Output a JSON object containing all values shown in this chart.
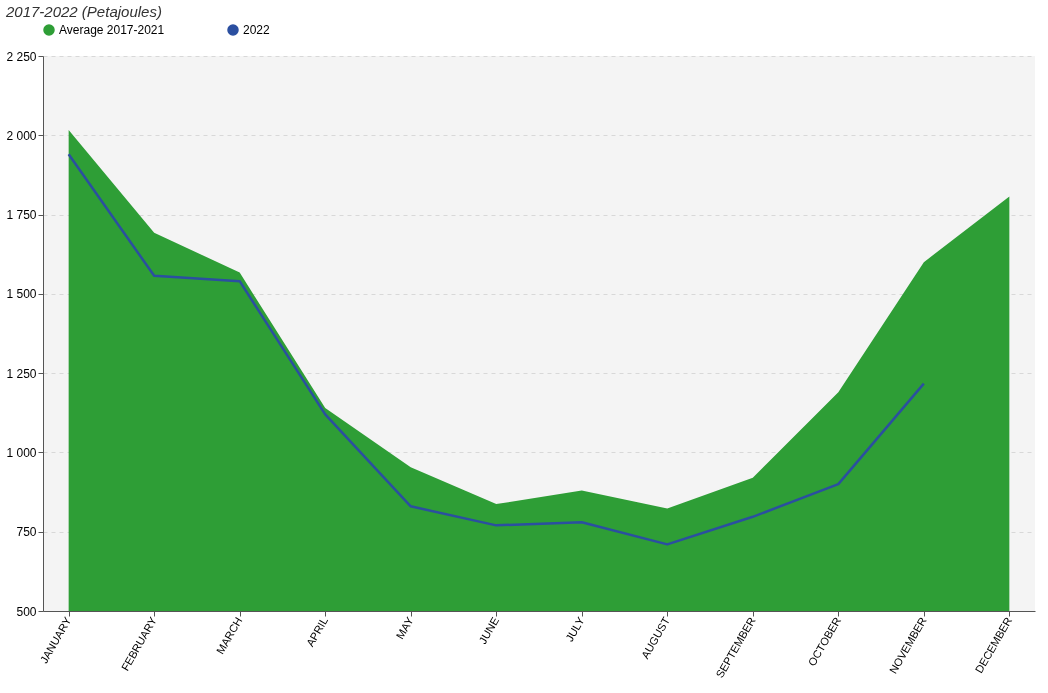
{
  "chart_data": {
    "type": "area",
    "title": "2017-2022 (Petajoules)",
    "categories": [
      "JANUARY",
      "FEBRUARY",
      "MARCH",
      "APRIL",
      "MAY",
      "JUNE",
      "JULY",
      "AUGUST",
      "SEPTEMBER",
      "OCTOBER",
      "NOVEMBER",
      "DECEMBER"
    ],
    "series": [
      {
        "name": "Average 2017-2021",
        "color": "#2e9e36",
        "values": [
          2017,
          1693,
          1567,
          1140,
          953,
          837,
          880,
          823,
          920,
          1190,
          1600,
          1807
        ]
      },
      {
        "name": "2022",
        "type": "line",
        "color": "#2b4fa0",
        "values": [
          1940,
          1557,
          1540,
          1120,
          830,
          770,
          780,
          710,
          797,
          900,
          1217,
          null
        ]
      }
    ],
    "ylim": [
      500,
      2250
    ],
    "yticks": [
      500,
      750,
      {
        "value": 1000,
        "label": "1 000"
      },
      {
        "value": 1250,
        "label": "1 250"
      },
      {
        "value": 1500,
        "label": "1 500"
      },
      {
        "value": 1750,
        "label": "1 750"
      },
      {
        "value": 2000,
        "label": "2 000"
      },
      {
        "value": 2250,
        "label": "2 250"
      }
    ],
    "grid": "y",
    "legend": "top"
  }
}
